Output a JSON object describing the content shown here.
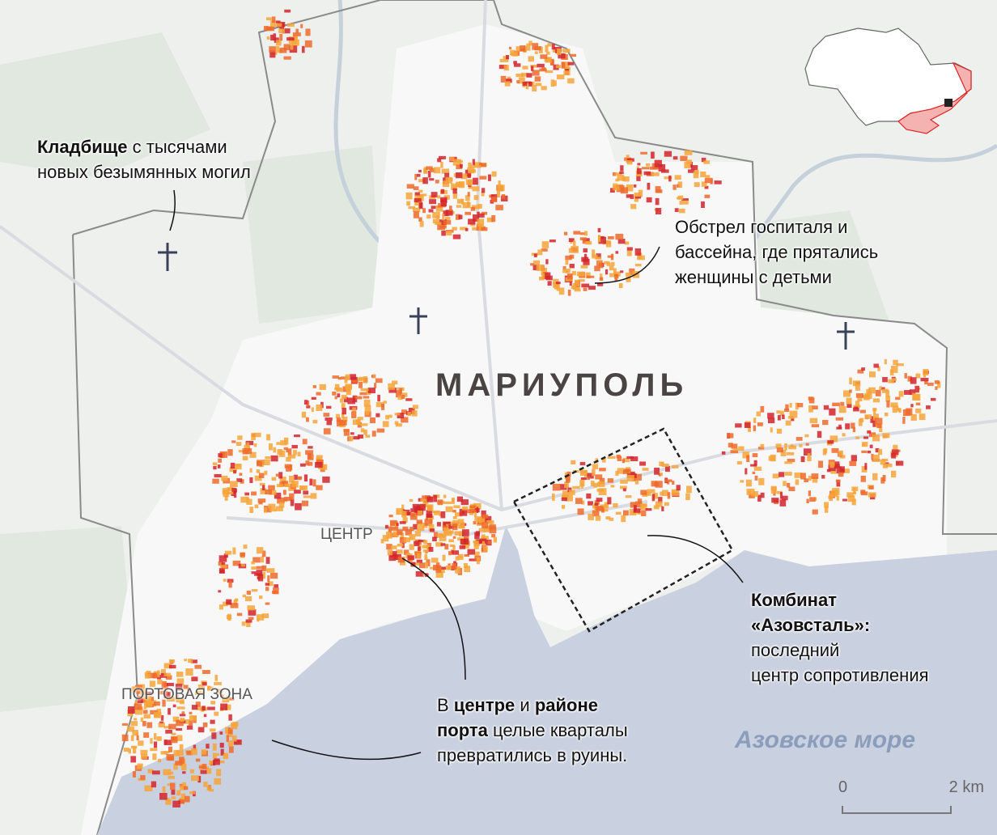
{
  "map": {
    "city_label": "МАРИУПОЛЬ",
    "districts": {
      "center": "ЦЕНТР",
      "port": "ПОРТОВАЯ ЗОНА"
    },
    "sea_label": "Азовское море",
    "scale": {
      "start": "0",
      "end": "2 km"
    },
    "colors": {
      "sea": "#c9d0df",
      "damage_light": "#f7a53a",
      "damage_mid": "#ef6a2a",
      "damage_heavy": "#d4252c",
      "occupied": "#f4b3b0",
      "highlight_box": "#222222"
    },
    "annotations": {
      "cemetery": {
        "bold": "Кладбище",
        "rest1": " с тысячами",
        "line2": "новых безымянных могил"
      },
      "hospital": {
        "line1": "Обстрел госпиталя и",
        "line2": "бассейна, где прятались",
        "line3": "женщины с детьми"
      },
      "azovstal": {
        "line1": "Комбинат",
        "line2": "«Азовсталь»:",
        "line3": "последний",
        "line4": "центр сопротивления"
      },
      "ruins": {
        "b1": "В ",
        "bold1": "центре",
        "mid": " и ",
        "bold2": "районе",
        "bold3": "порта",
        "rest": " целые кварталы",
        "line3": "превратились в руины."
      }
    },
    "inset": {
      "icon": "ukraine-locator-map",
      "marker": "mariupol-location-square"
    }
  }
}
